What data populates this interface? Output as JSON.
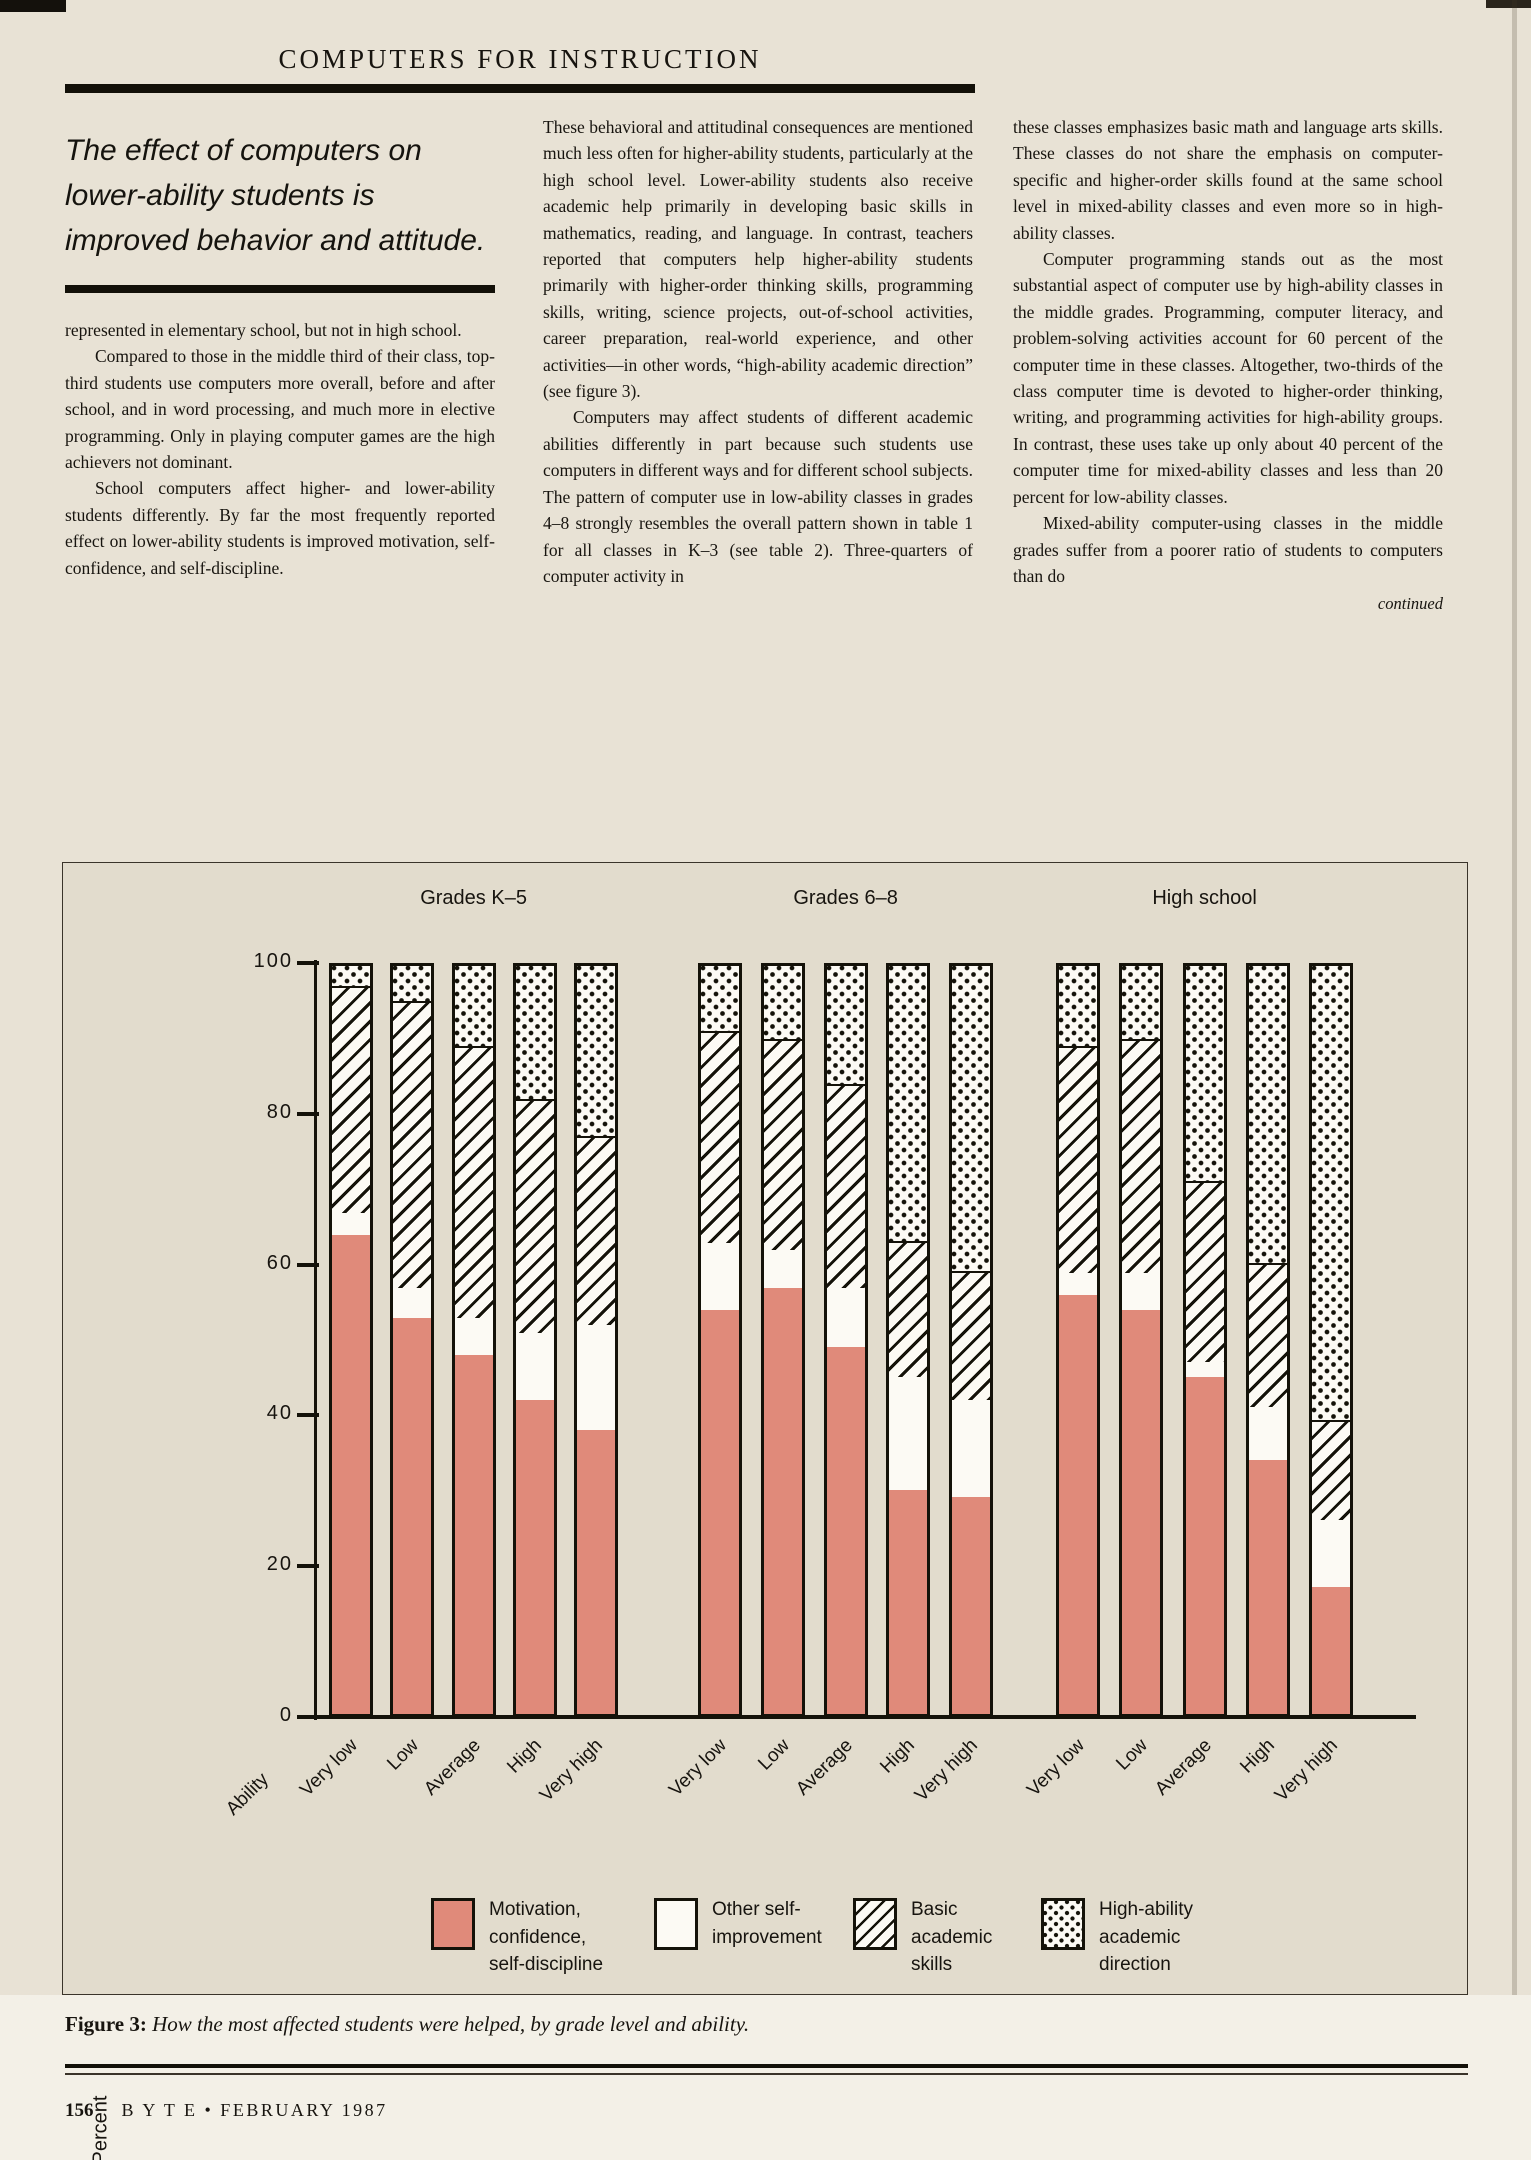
{
  "header": {
    "title": "COMPUTERS FOR INSTRUCTION"
  },
  "pull_quote": {
    "text": "The effect of computers on lower-ability students is improved behavior and attitude."
  },
  "columns": {
    "col1": {
      "paragraphs": [
        "represented in elementary school, but not in high school.",
        "Compared to those in the middle third of their class, top-third students use computers more overall, before and after school, and in word processing, and much more in elective programming. Only in playing computer games are the high achievers not dominant.",
        "School computers affect higher- and lower-ability students differently. By far the most frequently reported effect on lower-ability students is improved motivation, self-confidence, and self-discipline."
      ]
    },
    "col2": {
      "paragraphs": [
        "These behavioral and attitudinal consequences are mentioned much less often for higher-ability students, particularly at the high school level. Lower-ability students also receive academic help primarily in developing basic skills in mathematics, reading, and language. In contrast, teachers reported that computers help higher-ability students primarily with higher-order thinking skills, programming skills, writing, science projects, out-of-school activities, career preparation, real-world experience, and other activities—in other words, “high-ability academic direction” (see figure 3).",
        "Computers may affect students of different academic abilities differently in part because such students use computers in different ways and for different school subjects. The pattern of computer use in low-ability classes in grades 4–8 strongly resembles the overall pattern shown in table 1 for all classes in K–3 (see table 2). Three-quarters of computer activity in"
      ]
    },
    "col3": {
      "paragraphs": [
        "these classes emphasizes basic math and language arts skills. These classes do not share the emphasis on computer-specific and higher-order skills found at the same school level in mixed-ability classes and even more so in high-ability classes.",
        "Computer programming stands out as the most substantial aspect of computer use by high-ability classes in the middle grades. Programming, computer literacy, and problem-solving activities account for 60 percent of the computer time in these classes. Altogether, two-thirds of the class computer time is devoted to higher-order thinking, writing, and programming activities for high-ability groups. In contrast, these uses take up only about 40 percent of the computer time for mixed-ability classes and less than 20 percent for low-ability classes.",
        "Mixed-ability computer-using classes in the middle grades suffer from a poorer ratio of students to computers than do"
      ],
      "continued": "continued"
    }
  },
  "chart_data": {
    "type": "bar",
    "stacked": true,
    "ylabel": "Percent",
    "xlabel": "Ability",
    "ylim": [
      0,
      100
    ],
    "yticks": [
      0,
      20,
      40,
      60,
      80,
      100
    ],
    "series_order": [
      "motivation_confidence_self_discipline",
      "other_self_improvement",
      "basic_academic_skills",
      "high_ability_academic_direction"
    ],
    "groups": [
      {
        "label": "Grades K–5",
        "categories": [
          "Very low",
          "Low",
          "Average",
          "High",
          "Very high"
        ],
        "bars": [
          [
            64,
            3,
            30,
            3
          ],
          [
            53,
            4,
            38,
            5
          ],
          [
            48,
            5,
            36,
            11
          ],
          [
            42,
            9,
            31,
            18
          ],
          [
            38,
            14,
            25,
            23
          ]
        ]
      },
      {
        "label": "Grades 6–8",
        "categories": [
          "Very low",
          "Low",
          "Average",
          "High",
          "Very high"
        ],
        "bars": [
          [
            54,
            9,
            28,
            9
          ],
          [
            57,
            5,
            28,
            10
          ],
          [
            49,
            8,
            27,
            16
          ],
          [
            30,
            15,
            18,
            37
          ],
          [
            29,
            13,
            17,
            41
          ]
        ]
      },
      {
        "label": "High school",
        "categories": [
          "Very low",
          "Low",
          "Average",
          "High",
          "Very high"
        ],
        "bars": [
          [
            56,
            3,
            30,
            11
          ],
          [
            54,
            5,
            31,
            10
          ],
          [
            45,
            2,
            24,
            29
          ],
          [
            34,
            7,
            19,
            40
          ],
          [
            17,
            9,
            13,
            61
          ]
        ]
      }
    ],
    "legend": [
      {
        "pattern": "p-solid",
        "lines": [
          "Motivation,",
          "confidence,",
          "self-discipline"
        ]
      },
      {
        "pattern": "p-plain",
        "lines": [
          "Other self-",
          "improvement"
        ]
      },
      {
        "pattern": "p-hatch",
        "lines": [
          "Basic",
          "academic",
          "skills"
        ]
      },
      {
        "pattern": "p-dots",
        "lines": [
          "High-ability",
          "academic",
          "direction"
        ]
      }
    ],
    "colors": {
      "motivation": "#e08a7a",
      "paper": "#fcfaf4",
      "ink": "#141209"
    }
  },
  "figure_caption": {
    "label": "Figure 3:",
    "text": "How the most affected students were helped, by grade level and ability."
  },
  "footer": {
    "page_number": "156",
    "text": "B Y T E • FEBRUARY 1987"
  }
}
